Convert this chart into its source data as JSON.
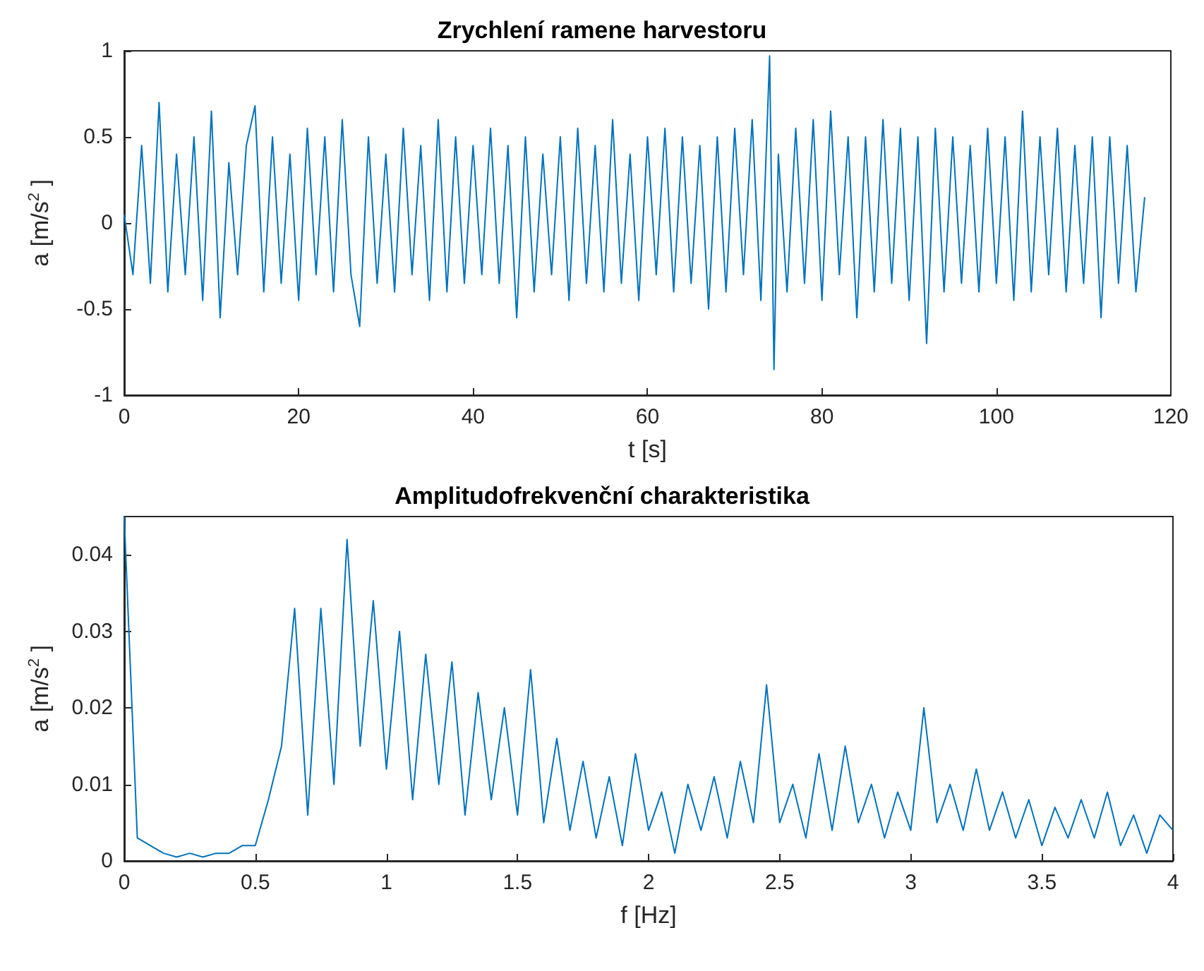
{
  "chart_data": [
    {
      "type": "line",
      "title": "Zrychlení ramene harvestoru",
      "xlabel": "t [s]",
      "ylabel": "a [m/s$^{2}$ ]",
      "xlim": [
        0,
        120
      ],
      "xticks": [
        0,
        20,
        40,
        60,
        80,
        100,
        120
      ],
      "ylim": [
        -1,
        1
      ],
      "yticks": [
        -1,
        -0.5,
        0,
        0.5,
        1
      ],
      "grid": false,
      "series": [
        {
          "color": "#0072bd",
          "x": [
            0,
            1,
            2,
            3,
            4,
            5,
            6,
            7,
            8,
            9,
            10,
            11,
            12,
            13,
            14,
            15,
            16,
            17,
            18,
            19,
            20,
            21,
            22,
            23,
            24,
            25,
            26,
            27,
            28,
            29,
            30,
            31,
            32,
            33,
            34,
            35,
            36,
            37,
            38,
            39,
            40,
            41,
            42,
            43,
            44,
            45,
            46,
            47,
            48,
            49,
            50,
            51,
            52,
            53,
            54,
            55,
            56,
            57,
            58,
            59,
            60,
            61,
            62,
            63,
            64,
            65,
            66,
            67,
            68,
            69,
            70,
            71,
            72,
            73,
            74,
            74.5,
            75,
            76,
            77,
            78,
            79,
            80,
            81,
            82,
            83,
            84,
            85,
            86,
            87,
            88,
            89,
            90,
            91,
            92,
            93,
            94,
            95,
            96,
            97,
            98,
            99,
            100,
            101,
            102,
            103,
            104,
            105,
            106,
            107,
            108,
            109,
            110,
            111,
            112,
            113,
            114,
            115,
            116,
            117
          ],
          "values": [
            0.05,
            -0.3,
            0.45,
            -0.35,
            0.7,
            -0.4,
            0.4,
            -0.3,
            0.5,
            -0.45,
            0.65,
            -0.55,
            0.35,
            -0.3,
            0.45,
            0.68,
            -0.4,
            0.5,
            -0.35,
            0.4,
            -0.45,
            0.55,
            -0.3,
            0.5,
            -0.4,
            0.6,
            -0.3,
            -0.6,
            0.5,
            -0.35,
            0.4,
            -0.4,
            0.55,
            -0.3,
            0.45,
            -0.45,
            0.6,
            -0.4,
            0.5,
            -0.35,
            0.45,
            -0.3,
            0.55,
            -0.35,
            0.45,
            -0.55,
            0.5,
            -0.4,
            0.4,
            -0.3,
            0.5,
            -0.45,
            0.55,
            -0.35,
            0.45,
            -0.4,
            0.6,
            -0.35,
            0.4,
            -0.45,
            0.5,
            -0.3,
            0.55,
            -0.4,
            0.5,
            -0.35,
            0.45,
            -0.5,
            0.5,
            -0.4,
            0.55,
            -0.3,
            0.6,
            -0.45,
            0.97,
            -0.85,
            0.4,
            -0.4,
            0.55,
            -0.35,
            0.6,
            -0.45,
            0.65,
            -0.3,
            0.5,
            -0.55,
            0.5,
            -0.4,
            0.6,
            -0.35,
            0.55,
            -0.45,
            0.5,
            -0.7,
            0.55,
            -0.4,
            0.5,
            -0.35,
            0.45,
            -0.4,
            0.55,
            -0.35,
            0.5,
            -0.45,
            0.65,
            -0.4,
            0.5,
            -0.3,
            0.55,
            -0.4,
            0.45,
            -0.35,
            0.5,
            -0.55,
            0.5,
            -0.35,
            0.45,
            -0.4,
            0.15
          ]
        }
      ]
    },
    {
      "type": "line",
      "title": "Amplitudofrekvenční charakteristika",
      "xlabel": "f [Hz]",
      "ylabel": "a [m/s$^{2}$ ]",
      "xlim": [
        0,
        4
      ],
      "xticks": [
        0,
        0.5,
        1,
        1.5,
        2,
        2.5,
        3,
        3.5,
        4
      ],
      "ylim": [
        0,
        0.045
      ],
      "yticks": [
        0,
        0.01,
        0.02,
        0.03,
        0.04
      ],
      "grid": false,
      "series": [
        {
          "color": "#0072bd",
          "x": [
            0,
            0.05,
            0.1,
            0.15,
            0.2,
            0.25,
            0.3,
            0.35,
            0.4,
            0.45,
            0.5,
            0.55,
            0.6,
            0.65,
            0.7,
            0.75,
            0.8,
            0.85,
            0.9,
            0.95,
            1,
            1.05,
            1.1,
            1.15,
            1.2,
            1.25,
            1.3,
            1.35,
            1.4,
            1.45,
            1.5,
            1.55,
            1.6,
            1.65,
            1.7,
            1.75,
            1.8,
            1.85,
            1.9,
            1.95,
            2,
            2.05,
            2.1,
            2.15,
            2.2,
            2.25,
            2.3,
            2.35,
            2.4,
            2.45,
            2.5,
            2.55,
            2.6,
            2.65,
            2.7,
            2.75,
            2.8,
            2.85,
            2.9,
            2.95,
            3,
            3.05,
            3.1,
            3.15,
            3.2,
            3.25,
            3.3,
            3.35,
            3.4,
            3.45,
            3.5,
            3.55,
            3.6,
            3.65,
            3.7,
            3.75,
            3.8,
            3.85,
            3.9,
            3.95,
            4
          ],
          "values": [
            0.045,
            0.003,
            0.002,
            0.001,
            0.0005,
            0.001,
            0.0005,
            0.001,
            0.001,
            0.002,
            0.002,
            0.008,
            0.015,
            0.033,
            0.006,
            0.033,
            0.01,
            0.042,
            0.015,
            0.034,
            0.012,
            0.03,
            0.008,
            0.027,
            0.01,
            0.026,
            0.006,
            0.022,
            0.008,
            0.02,
            0.006,
            0.025,
            0.005,
            0.016,
            0.004,
            0.013,
            0.003,
            0.011,
            0.002,
            0.014,
            0.004,
            0.009,
            0.001,
            0.01,
            0.004,
            0.011,
            0.003,
            0.013,
            0.005,
            0.023,
            0.005,
            0.01,
            0.003,
            0.014,
            0.004,
            0.015,
            0.005,
            0.01,
            0.003,
            0.009,
            0.004,
            0.02,
            0.005,
            0.01,
            0.004,
            0.012,
            0.004,
            0.009,
            0.003,
            0.008,
            0.002,
            0.007,
            0.003,
            0.008,
            0.003,
            0.009,
            0.002,
            0.006,
            0.001,
            0.006,
            0.004
          ]
        }
      ]
    }
  ]
}
